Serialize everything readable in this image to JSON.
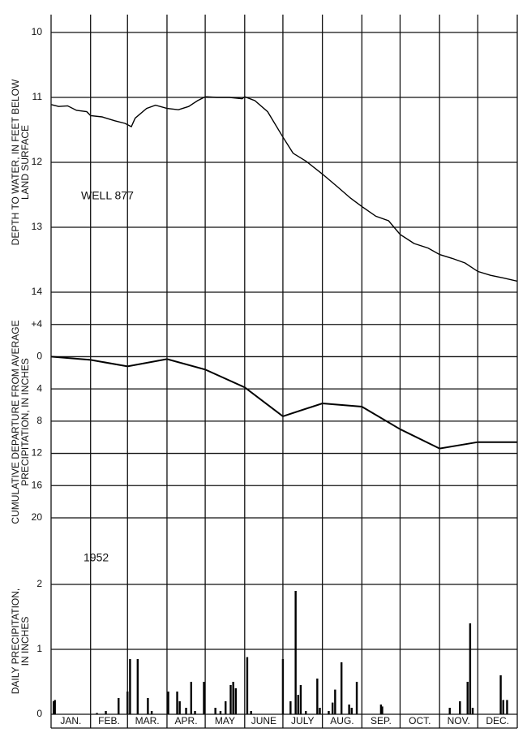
{
  "x_axis_labels": [
    "JAN.",
    "FEB.",
    "MAR.",
    "APR.",
    "MAY",
    "JUNE",
    "JULY",
    "AUG.",
    "SEP.",
    "OCT.",
    "NOV.",
    "DEC."
  ],
  "chart_data": [
    {
      "type": "line",
      "ylabel": [
        "DEPTH TO WATER, IN FEET BELOW",
        "LAND SURFACE"
      ],
      "annotation": "WELL 877",
      "invert_y": true,
      "color": "#000000",
      "xlim": [
        0,
        366
      ],
      "ylim": [
        10,
        14
      ],
      "yticks": [
        10,
        11,
        12,
        13,
        14
      ],
      "grid": true,
      "x": [
        0,
        6,
        13,
        20,
        28,
        31,
        40,
        50,
        58,
        63,
        66,
        75,
        82,
        91,
        100,
        108,
        115,
        121,
        130,
        140,
        150,
        152,
        160,
        170,
        182,
        190,
        200,
        213,
        225,
        235,
        244,
        255,
        265,
        274,
        285,
        296,
        305,
        315,
        325,
        335,
        345,
        355,
        366
      ],
      "values": [
        11.11,
        11.14,
        11.13,
        11.2,
        11.22,
        11.28,
        11.3,
        11.36,
        11.4,
        11.45,
        11.32,
        11.17,
        11.12,
        11.17,
        11.19,
        11.14,
        11.05,
        10.99,
        11.0,
        11.0,
        11.02,
        10.99,
        11.05,
        11.22,
        11.61,
        11.86,
        11.98,
        12.18,
        12.38,
        12.55,
        12.68,
        12.83,
        12.9,
        13.11,
        13.25,
        13.32,
        13.42,
        13.48,
        13.55,
        13.68,
        13.74,
        13.78,
        13.83
      ]
    },
    {
      "type": "line",
      "ylabel": [
        "CUMULATIVE DEPARTURE FROM AVERAGE",
        "PRECIPITATION, IN INCHES"
      ],
      "color": "#000000",
      "xlim": [
        0,
        366
      ],
      "ylim": [
        -20,
        8
      ],
      "yticks": [
        {
          "value": 4,
          "label": "+4"
        },
        0,
        {
          "value": -4,
          "label": "4"
        },
        {
          "value": -8,
          "label": "8"
        },
        {
          "value": -12,
          "label": "12"
        },
        {
          "value": -16,
          "label": "16"
        },
        {
          "value": -20,
          "label": "20"
        }
      ],
      "grid": true,
      "x": [
        0,
        31,
        60,
        91,
        121,
        152,
        182,
        213,
        244,
        274,
        305,
        335,
        366
      ],
      "values": [
        0,
        -0.4,
        -1.2,
        -0.3,
        -1.6,
        -3.8,
        -7.4,
        -5.8,
        -6.2,
        -9,
        -11.4,
        -10.6,
        -10.6
      ]
    },
    {
      "type": "bar",
      "ylabel": [
        "DAILY PRECIPITATION,",
        "IN INCHES"
      ],
      "annotation": "1952",
      "color": "#000000",
      "xlim": [
        0,
        366
      ],
      "ylim": [
        0,
        3
      ],
      "yticks": [
        0,
        1,
        2
      ],
      "grid": true,
      "x": [
        2,
        3,
        36,
        43,
        53,
        60,
        62,
        68,
        76,
        79,
        92,
        99,
        101,
        106,
        110,
        113,
        120,
        129,
        133,
        137,
        141,
        143,
        145,
        154,
        157,
        182,
        188,
        192,
        194,
        196,
        200,
        209,
        211,
        218,
        221,
        223,
        228,
        234,
        236,
        240,
        259,
        260,
        313,
        321,
        327,
        329,
        331,
        353,
        355,
        358
      ],
      "values": [
        0.2,
        0.22,
        0.02,
        0.05,
        0.25,
        0.35,
        0.85,
        0.85,
        0.25,
        0.05,
        0.35,
        0.35,
        0.2,
        0.1,
        0.5,
        0.05,
        0.5,
        0.1,
        0.05,
        0.2,
        0.45,
        0.5,
        0.4,
        0.88,
        0.05,
        0.85,
        0.2,
        1.9,
        0.3,
        0.45,
        0.05,
        0.55,
        0.1,
        0.05,
        0.18,
        0.38,
        0.8,
        0.15,
        0.1,
        0.5,
        0.15,
        0.12,
        0.1,
        0.2,
        0.5,
        1.4,
        0.1,
        0.6,
        0.22,
        0.22
      ]
    }
  ]
}
